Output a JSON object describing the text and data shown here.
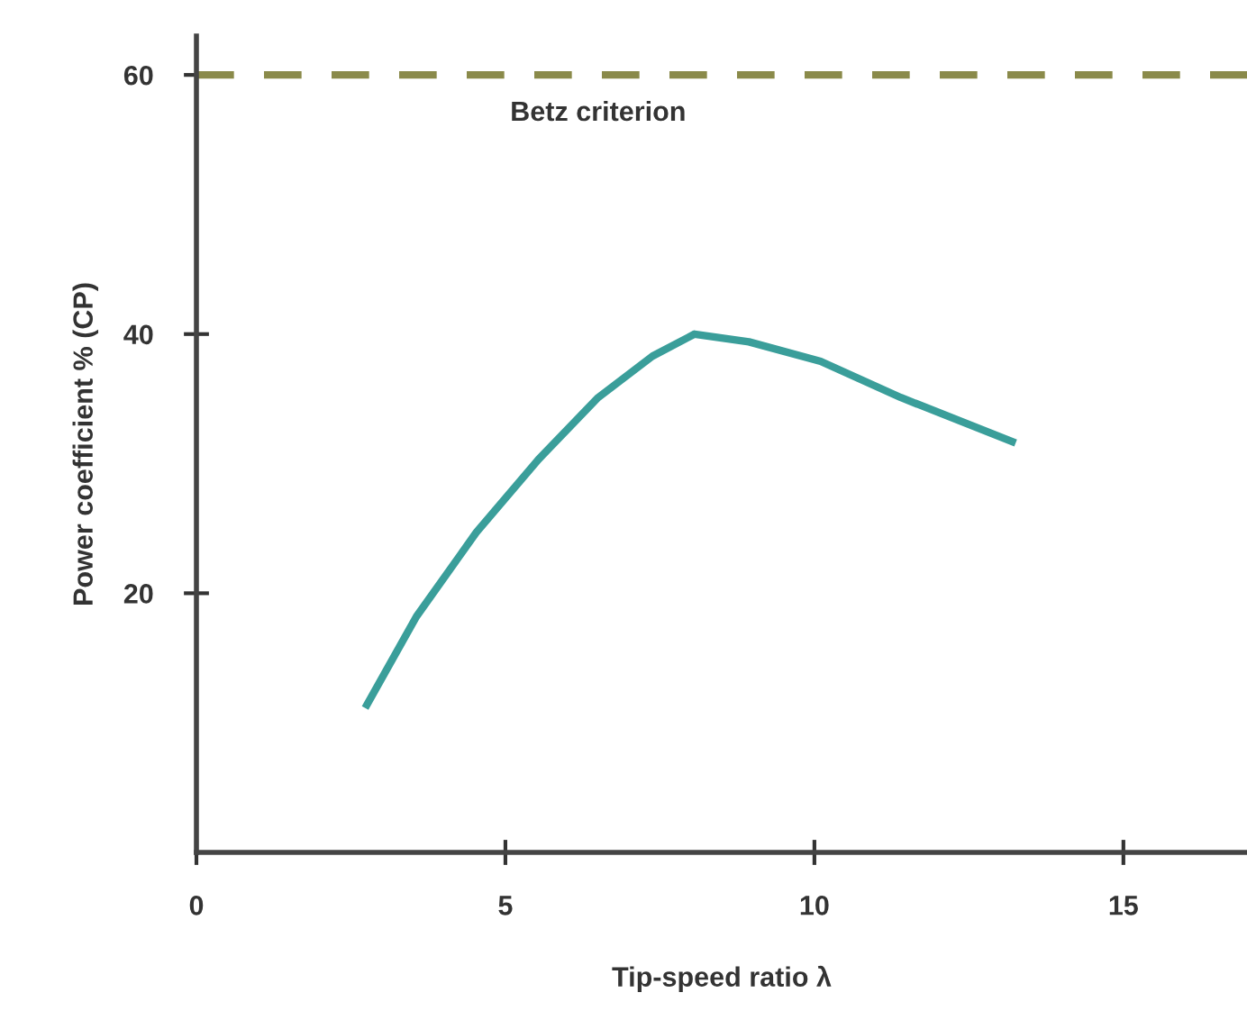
{
  "chart_data": {
    "type": "line",
    "xlabel": "Tip-speed ratio λ",
    "ylabel": "Power coefficient % (CP)",
    "x": [
      2.76,
      3.56,
      4.53,
      5.53,
      6.5,
      7.38,
      8.06,
      8.94,
      10.1,
      11.4,
      13.2
    ],
    "series": [
      {
        "color": "#3a9e9a",
        "values": [
          11.4,
          18.2,
          24.7,
          30.3,
          35.1,
          38.3,
          40.0,
          39.4,
          37.9,
          35.1,
          31.7
        ]
      }
    ],
    "xlim": [
      0,
      17
    ],
    "ylim": [
      0,
      63
    ],
    "xticks": [
      0,
      5,
      10,
      15
    ],
    "yticks": [
      20,
      40,
      60
    ],
    "ref_lines": [
      {
        "axis": "y",
        "value": 60,
        "label": "Betz criterion",
        "color": "#8a8a4a",
        "line_style": "dashed"
      }
    ],
    "grid": false,
    "legend": false,
    "marker": "none",
    "line_style": "solid"
  }
}
